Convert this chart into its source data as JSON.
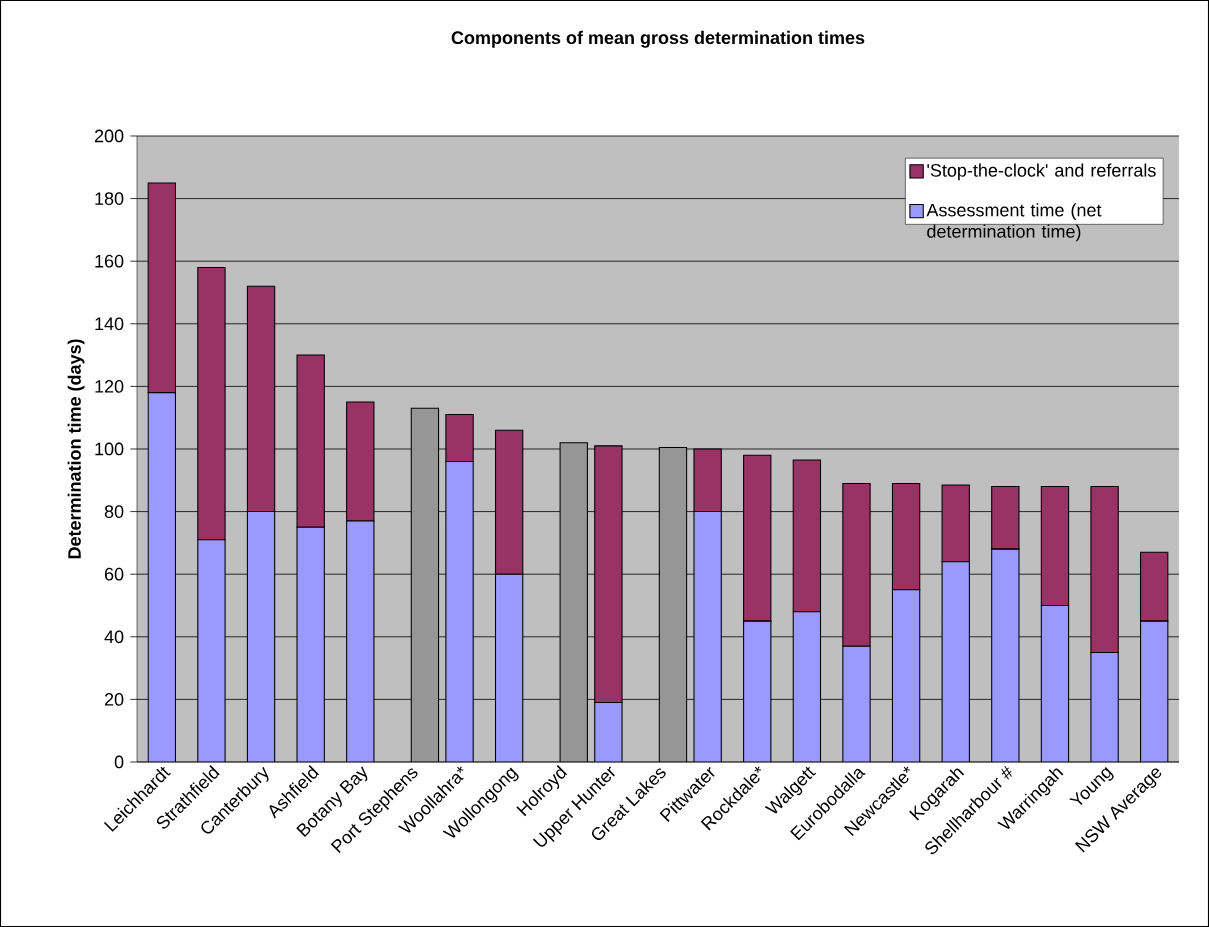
{
  "chart_data": {
    "type": "bar",
    "title": "Components of mean gross determination times",
    "ylabel": "Determination time (days)",
    "categories": [
      "Leichhardt",
      "Strathfield",
      "Canterbury",
      "Ashfield",
      "Botany Bay",
      "Port Stephens",
      "Woollahra*",
      "Wollongong",
      "Holroyd",
      "Upper Hunter",
      "Great Lakes",
      "Pittwater",
      "Rockdale*",
      "Walgett",
      "Eurobodalla",
      "Newcastle*",
      "Kogarah",
      "Shellharbour #",
      "Warringah",
      "Young",
      "NSW Average"
    ],
    "stacked": true,
    "ylim": [
      0,
      200
    ],
    "yticks": [
      0,
      20,
      40,
      60,
      80,
      100,
      120,
      140,
      160,
      180,
      200
    ],
    "grid": "y",
    "legend": "top right",
    "series": [
      {
        "name": "Assessment time (net determination time)",
        "color": "#9999ff",
        "values": [
          118,
          71,
          80,
          75,
          77,
          null,
          96,
          60,
          null,
          19,
          null,
          80,
          45,
          48,
          37,
          55,
          64,
          68,
          50,
          35,
          45
        ]
      },
      {
        "name": "'Stop-the-clock' and referrals",
        "color": "#993366",
        "values": [
          67,
          87,
          72,
          55,
          38,
          null,
          15,
          46,
          null,
          82,
          null,
          20,
          53,
          48.5,
          52,
          34,
          24.5,
          20,
          38,
          53,
          22
        ]
      },
      {
        "color": "#969696",
        "values": [
          null,
          null,
          null,
          null,
          null,
          113,
          null,
          null,
          102,
          null,
          100.5,
          null,
          null,
          null,
          null,
          null,
          null,
          null,
          null,
          null,
          null
        ]
      }
    ]
  }
}
